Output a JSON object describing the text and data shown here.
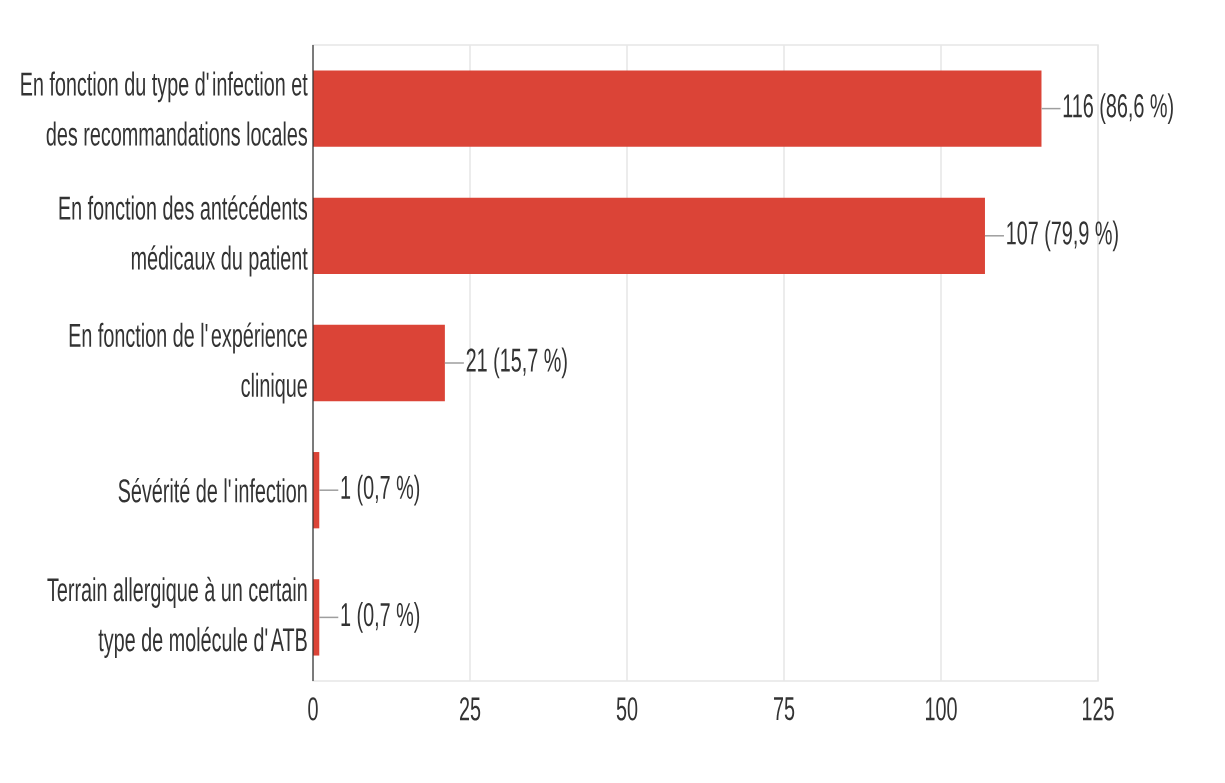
{
  "chart_data": {
    "type": "bar",
    "orientation": "horizontal",
    "categories": [
      "En fonction du type d'infection et des recommandations locales",
      "En fonction des antécédents médicaux du patient",
      "En fonction de l'expérience clinique",
      "Sévérité de l'infection",
      "Terrain allergique à un certain type de molécule d'ATB"
    ],
    "values": [
      116,
      107,
      21,
      1,
      1
    ],
    "value_labels": [
      "116 (86,6 %)",
      "107 (79,9 %)",
      "21 (15,7 %)",
      "1 (0,7 %)",
      "1 (0,7 %)"
    ],
    "color": "#db4437",
    "xlim": [
      0,
      125
    ],
    "xticks": [
      0,
      25,
      50,
      75,
      100,
      125
    ],
    "grid": "x"
  }
}
